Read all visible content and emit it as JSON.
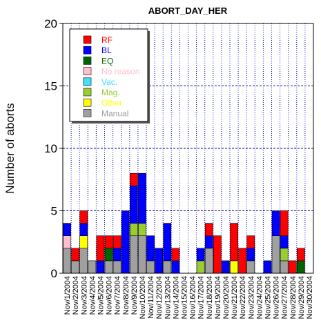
{
  "chart_data": {
    "type": "bar",
    "stacked": true,
    "title": "ABORT_DAY_HER",
    "xlabel": "",
    "ylabel": "Number of aborts",
    "ylim": [
      0,
      20
    ],
    "yticks": [
      0,
      5,
      10,
      15,
      20
    ],
    "grid": true,
    "legend_position": "top-left",
    "categories": [
      "Nov/1/2004",
      "Nov/2/2004",
      "Nov/3/2004",
      "Nov/4/2004",
      "Nov/5/2004",
      "Nov/6/2004",
      "Nov/7/2004",
      "Nov/8/2004",
      "Nov/9/2004",
      "Nov/10/2004",
      "Nov/11/2004",
      "Nov/12/2004",
      "Nov/13/2004",
      "Nov/14/2004",
      "Nov/15/2004",
      "Nov/16/2004",
      "Nov/17/2004",
      "Nov/18/2004",
      "Nov/19/2004",
      "Nov/20/2004",
      "Nov/21/2004",
      "Nov/22/2004",
      "Nov/23/2004",
      "Nov/24/2004",
      "Nov/25/2004",
      "Nov/26/2004",
      "Nov/27/2004",
      "Nov/28/2004",
      "Nov/29/2004",
      "Nov/30/2004"
    ],
    "series_stack_order": [
      "Manual",
      "Other",
      "Mag.",
      "Vac.",
      "No reason",
      "EQ",
      "BL",
      "RF"
    ],
    "series": [
      {
        "name": "RF",
        "color": "#ff0000",
        "values": [
          0,
          1,
          1,
          0,
          2,
          1,
          1,
          0,
          1,
          0,
          0,
          0,
          0,
          1,
          0,
          0,
          0,
          1,
          3,
          0,
          3,
          2,
          1,
          0,
          0,
          0,
          2,
          1,
          1,
          0
        ]
      },
      {
        "name": "BL",
        "color": "#0000ff",
        "values": [
          1,
          0,
          1,
          0,
          1,
          0,
          1,
          5,
          3,
          4,
          2,
          2,
          3,
          1,
          0,
          0,
          1,
          1,
          0,
          1,
          0,
          0,
          1,
          0,
          1,
          2,
          1,
          0,
          0,
          0
        ]
      },
      {
        "name": "EQ",
        "color": "#006400",
        "values": [
          0,
          0,
          0,
          0,
          0,
          1,
          0,
          0,
          0,
          0,
          0,
          0,
          0,
          0,
          0,
          0,
          0,
          0,
          0,
          0,
          0,
          0,
          0,
          0,
          0,
          0,
          0,
          0,
          1,
          0
        ]
      },
      {
        "name": "No reason",
        "color": "#ffc0cb",
        "values": [
          1,
          0,
          0,
          0,
          0,
          0,
          0,
          0,
          0,
          0,
          0,
          0,
          0,
          0,
          0,
          0,
          0,
          0,
          0,
          0,
          0,
          0,
          0,
          0,
          0,
          0,
          0,
          0,
          0,
          0
        ]
      },
      {
        "name": "Vac.",
        "color": "#40e0ff",
        "values": [
          0,
          0,
          0,
          0,
          0,
          0,
          0,
          0,
          0,
          0,
          0,
          0,
          0,
          0,
          0,
          0,
          0,
          0,
          0,
          0,
          0,
          0,
          0,
          0,
          0,
          0,
          0,
          0,
          0,
          0
        ]
      },
      {
        "name": "Mag.",
        "color": "#9acd32",
        "values": [
          0,
          0,
          0,
          0,
          0,
          0,
          0,
          0,
          1,
          1,
          0,
          0,
          0,
          0,
          0,
          0,
          1,
          0,
          0,
          0,
          0,
          0,
          0,
          0,
          0,
          0,
          1,
          0,
          0,
          0
        ]
      },
      {
        "name": "Other",
        "color": "#ffff00",
        "values": [
          0,
          0,
          1,
          0,
          0,
          0,
          0,
          0,
          0,
          0,
          0,
          0,
          0,
          0,
          0,
          0,
          0,
          0,
          0,
          0,
          1,
          0,
          0,
          0,
          0,
          0,
          0,
          0,
          0,
          0
        ]
      },
      {
        "name": "Manual",
        "color": "#a0a0a0",
        "values": [
          2,
          1,
          2,
          1,
          0,
          1,
          1,
          0,
          3,
          3,
          1,
          0,
          1,
          0,
          0,
          0,
          0,
          2,
          0,
          0,
          0,
          0,
          1,
          0,
          0,
          3,
          1,
          0,
          0,
          0
        ]
      }
    ]
  }
}
